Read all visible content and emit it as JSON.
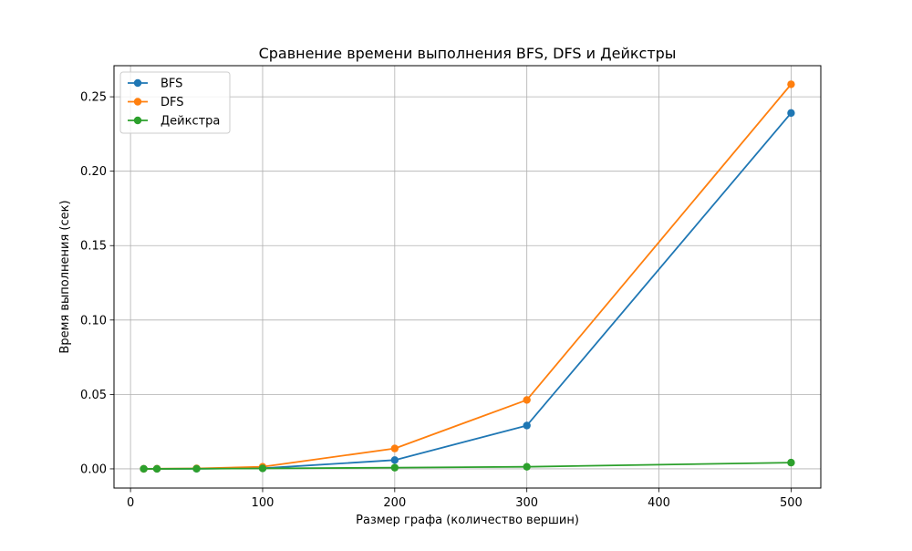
{
  "chart_data": {
    "type": "line",
    "title": "Сравнение времени выполнения BFS, DFS и Дейкстры",
    "xlabel": "Размер графа (количество вершин)",
    "ylabel": "Время выполнения (сек)",
    "xlim": [
      -12.5,
      522.5
    ],
    "ylim": [
      -0.0129,
      0.2709
    ],
    "xticks": [
      0,
      100,
      200,
      300,
      400,
      500
    ],
    "xtick_labels": [
      "0",
      "100",
      "200",
      "300",
      "400",
      "500"
    ],
    "yticks": [
      0.0,
      0.05,
      0.1,
      0.15,
      0.2,
      0.25
    ],
    "ytick_labels": [
      "0.00",
      "0.05",
      "0.10",
      "0.15",
      "0.20",
      "0.25"
    ],
    "grid": true,
    "legend_position": "top-left",
    "x": [
      10,
      20,
      50,
      100,
      200,
      300,
      500
    ],
    "series": [
      {
        "name": "BFS",
        "color": "#1f77b4",
        "values": [
          0.0,
          0.0,
          0.0001,
          0.0004,
          0.0059,
          0.0291,
          0.2391
        ]
      },
      {
        "name": "DFS",
        "color": "#ff7f0e",
        "values": [
          0.0,
          0.0001,
          0.0003,
          0.0014,
          0.0137,
          0.0463,
          0.2584
        ]
      },
      {
        "name": "Дейкстра",
        "color": "#2ca02c",
        "values": [
          0.0,
          0.0,
          0.0001,
          0.0003,
          0.0008,
          0.0014,
          0.0042
        ]
      }
    ]
  }
}
